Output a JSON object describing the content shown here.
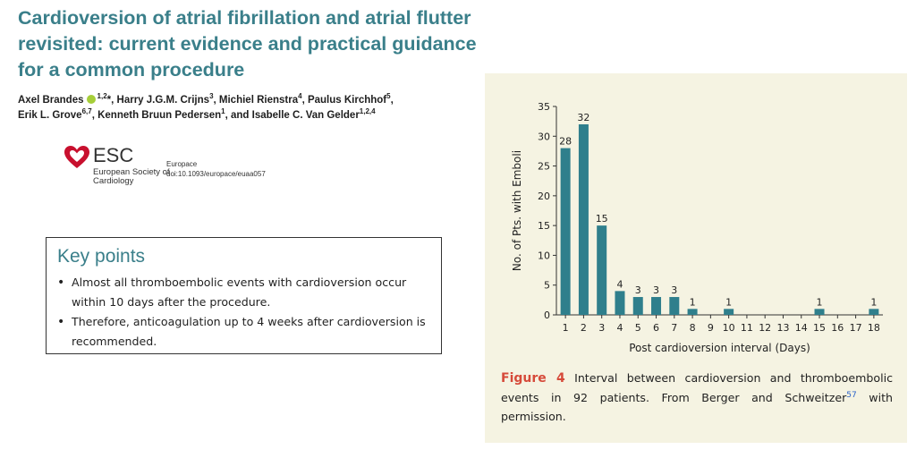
{
  "article": {
    "title": "Cardioversion of atrial fibrillation and atrial flutter revisited: current evidence and practical guidance for a common procedure",
    "authors": [
      {
        "name": "Axel Brandes",
        "sup": "1,2",
        "suffix": "*",
        "orcid": true,
        "sep": ", "
      },
      {
        "name": "Harry J.G.M. Crijns",
        "sup": "3",
        "sep": ", "
      },
      {
        "name": "Michiel Rienstra",
        "sup": "4",
        "sep": ", "
      },
      {
        "name": "Paulus Kirchhof",
        "sup": "5",
        "sep": ","
      },
      {
        "name": "Erik L. Grove",
        "sup": "6,7",
        "sep": ", "
      },
      {
        "name": "Kenneth Bruun Pedersen",
        "sup": "1",
        "sep": ", and "
      },
      {
        "name": "Isabelle C. Van Gelder",
        "sup": "1,2,4",
        "sep": ""
      }
    ]
  },
  "logo": {
    "abbr": "ESC",
    "name": "European Society of Cardiology",
    "icon": "heart-icon",
    "color": "#c8102e"
  },
  "journal": {
    "name": "Europace",
    "doi": "doi:10.1093/europace/euaa057"
  },
  "key_points": {
    "heading": "Key points",
    "items": [
      "Almost all thromboembolic events with cardioversion occur within 10 days after the procedure.",
      "Therefore, anticoagulation up to 4 weeks after cardioversion is recommended."
    ]
  },
  "figure": {
    "label": "Figure 4",
    "caption_text": "Interval between cardioversion and thromboembolic events in 92 patients. From Berger and Schweitzer",
    "ref": "57",
    "caption_end": " with permission."
  },
  "chart_data": {
    "type": "bar",
    "categories": [
      "1",
      "2",
      "3",
      "4",
      "5",
      "6",
      "7",
      "8",
      "9",
      "10",
      "11",
      "12",
      "13",
      "14",
      "15",
      "16",
      "17",
      "18"
    ],
    "values": [
      28,
      32,
      15,
      4,
      3,
      3,
      3,
      1,
      0,
      1,
      0,
      0,
      0,
      0,
      1,
      0,
      0,
      1
    ],
    "data_labels": [
      "28",
      "32",
      "15",
      "4",
      "3",
      "3",
      "3",
      "1",
      "",
      "1",
      "",
      "",
      "",
      "",
      "1",
      "",
      "",
      "1"
    ],
    "xlabel": "Post cardioversion interval (Days)",
    "ylabel": "No. of Pts. with Emboli",
    "ylim": [
      0,
      35
    ],
    "yticks": [
      0,
      5,
      10,
      15,
      20,
      25,
      30,
      35
    ],
    "bar_color": "#2f7f8c",
    "grid": false
  },
  "colors": {
    "title": "#3a7f8a",
    "figure_label": "#d64a3a",
    "figure_bg": "#f5f3e2",
    "ref_link": "#2c63c9"
  }
}
